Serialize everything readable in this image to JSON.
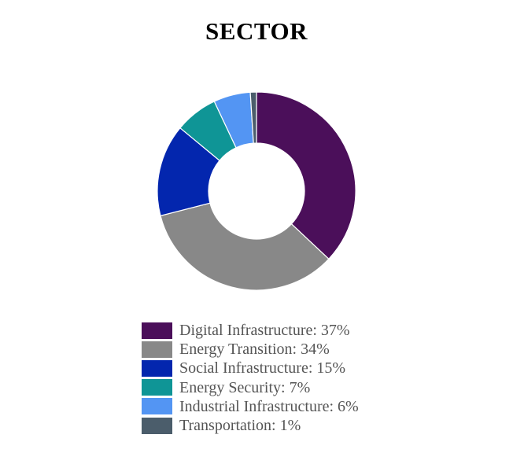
{
  "chart_data": {
    "type": "pie",
    "title": "SECTOR",
    "donut": true,
    "start_angle_deg": 0,
    "direction": "clockwise",
    "legend_position": "bottom",
    "slices": [
      {
        "name": "Digital Infrastructure",
        "value": 37,
        "label": "Digital Infrastructure: 37%",
        "color": "#4B0F5A"
      },
      {
        "name": "Energy Transition",
        "value": 34,
        "label": "Energy Transition: 34%",
        "color": "#888888"
      },
      {
        "name": "Social Infrastructure",
        "value": 15,
        "label": "Social Infrastructure: 15%",
        "color": "#0326AE"
      },
      {
        "name": "Energy Security",
        "value": 7,
        "label": "Energy Security: 7%",
        "color": "#0F9596"
      },
      {
        "name": "Industrial Infrastructure",
        "value": 6,
        "label": "Industrial Infrastructure: 6%",
        "color": "#5395F3"
      },
      {
        "name": "Transportation",
        "value": 1,
        "label": "Transportation: 1%",
        "color": "#4B5D6B"
      }
    ]
  }
}
